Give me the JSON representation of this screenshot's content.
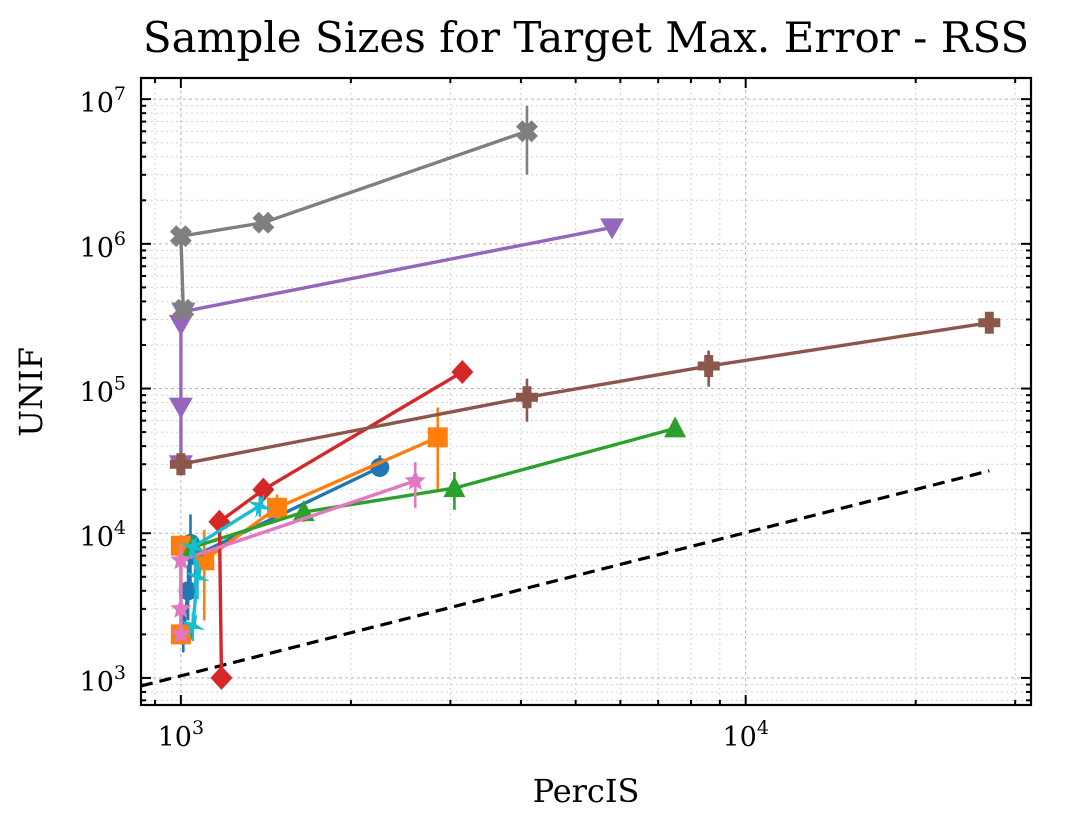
{
  "chart_data": {
    "type": "line",
    "title": "Sample Sizes for Target Max. Error - RSS",
    "xlabel": "PercIS",
    "ylabel": "UNIF",
    "xscale": "log",
    "yscale": "log",
    "xlim": [
      850,
      32000
    ],
    "ylim": [
      650,
      14000000
    ],
    "grid": true,
    "x_ticks": [
      {
        "value": 1000,
        "base": "10",
        "exp": "3"
      },
      {
        "value": 10000,
        "base": "10",
        "exp": "4"
      }
    ],
    "y_ticks": [
      {
        "value": 1000,
        "base": "10",
        "exp": "3"
      },
      {
        "value": 10000,
        "base": "10",
        "exp": "4"
      },
      {
        "value": 100000,
        "base": "10",
        "exp": "5"
      },
      {
        "value": 1000000,
        "base": "10",
        "exp": "6"
      },
      {
        "value": 10000000,
        "base": "10",
        "exp": "7"
      }
    ],
    "reference_line": {
      "style": "dashed",
      "color": "#000000",
      "points": [
        [
          850,
          880
        ],
        [
          27000,
          27000
        ]
      ]
    },
    "series": [
      {
        "name": "blue",
        "color": "#1f77b4",
        "marker": "circle",
        "points": [
          [
            1010,
            2000
          ],
          [
            1030,
            4000
          ],
          [
            1040,
            8500
          ],
          [
            1060,
            7000
          ],
          [
            2250,
            28500
          ]
        ],
        "err_low": [
          500,
          1500,
          4500,
          2000,
          4000
        ],
        "err_high": [
          1000,
          2000,
          5000,
          2500,
          6000
        ]
      },
      {
        "name": "orange",
        "color": "#ff7f0e",
        "marker": "square",
        "points": [
          [
            1000,
            2000
          ],
          [
            1000,
            8200
          ],
          [
            1100,
            6500
          ],
          [
            1480,
            15000
          ],
          [
            2850,
            46000
          ]
        ],
        "err_low": [
          0,
          1000,
          4000,
          3000,
          26000
        ],
        "err_high": [
          0,
          1500,
          4000,
          3500,
          28000
        ]
      },
      {
        "name": "green",
        "color": "#2ca02c",
        "marker": "triangle-up",
        "points": [
          [
            1050,
            8000
          ],
          [
            1650,
            14000
          ],
          [
            3050,
            20500
          ],
          [
            7500,
            53000
          ]
        ],
        "err_low": [
          1000,
          2000,
          6000,
          3000
        ],
        "err_high": [
          1000,
          2000,
          6000,
          3000
        ]
      },
      {
        "name": "red",
        "color": "#d62728",
        "marker": "diamond",
        "points": [
          [
            1180,
            1000
          ],
          [
            1170,
            12000
          ],
          [
            1400,
            20000
          ],
          [
            3150,
            130000
          ]
        ],
        "err_low": [
          0,
          1000,
          2000,
          10000
        ],
        "err_high": [
          0,
          1000,
          2000,
          10000
        ]
      },
      {
        "name": "purple",
        "color": "#9467bd",
        "marker": "triangle-down",
        "points": [
          [
            1000,
            30000
          ],
          [
            1000,
            75000
          ],
          [
            1000,
            280000
          ],
          [
            1010,
            340000
          ],
          [
            5800,
            1300000
          ]
        ],
        "err_low": [
          0,
          0,
          0,
          0,
          0
        ],
        "err_high": [
          0,
          0,
          0,
          0,
          0
        ]
      },
      {
        "name": "brown",
        "color": "#8c564b",
        "marker": "plus",
        "points": [
          [
            1000,
            30000
          ],
          [
            4100,
            87000
          ],
          [
            8600,
            143000
          ],
          [
            27000,
            285000
          ]
        ],
        "err_low": [
          0,
          28000,
          40000,
          0
        ],
        "err_high": [
          0,
          30000,
          40000,
          0
        ]
      },
      {
        "name": "pink",
        "color": "#e377c2",
        "marker": "star",
        "points": [
          [
            1000,
            2000
          ],
          [
            1000,
            3000
          ],
          [
            1000,
            6500
          ],
          [
            2600,
            23000
          ]
        ],
        "err_low": [
          0,
          500,
          2000,
          8000
        ],
        "err_high": [
          0,
          500,
          2000,
          8000
        ]
      },
      {
        "name": "gray",
        "color": "#7f7f7f",
        "marker": "x-filled",
        "points": [
          [
            1010,
            350000
          ],
          [
            1000,
            1130000
          ],
          [
            1400,
            1400000
          ],
          [
            4100,
            6000000
          ]
        ],
        "err_low": [
          0,
          0,
          0,
          3000000
        ],
        "err_high": [
          0,
          0,
          0,
          3000000
        ]
      },
      {
        "name": "cyan",
        "color": "#17becf",
        "marker": "star-thin",
        "points": [
          [
            1050,
            2300
          ],
          [
            1070,
            5000
          ],
          [
            1050,
            8000
          ],
          [
            1380,
            15500
          ]
        ],
        "err_low": [
          500,
          1500,
          1000,
          2500
        ],
        "err_high": [
          500,
          1500,
          1000,
          2500
        ]
      }
    ]
  }
}
